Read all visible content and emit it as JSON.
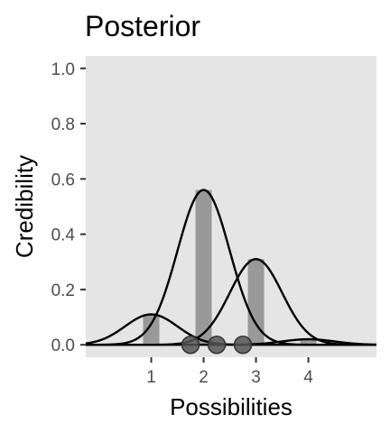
{
  "chart_data": {
    "type": "bar",
    "title": "Posterior",
    "xlabel": "Possibilities",
    "ylabel": "Credibility",
    "xlim": [
      -0.25,
      5.3
    ],
    "ylim": [
      -0.045,
      1.045
    ],
    "x_ticks": [
      1,
      2,
      3,
      4
    ],
    "x_tick_labels": [
      "1",
      "2",
      "3",
      "4"
    ],
    "y_ticks": [
      0.0,
      0.2,
      0.4,
      0.6,
      0.8,
      1.0
    ],
    "y_tick_labels": [
      "0.0",
      "0.2",
      "0.4",
      "0.6",
      "0.8",
      "1.0"
    ],
    "bars": {
      "categories": [
        1,
        2,
        3,
        4
      ],
      "values": [
        0.11,
        0.56,
        0.31,
        0.02
      ],
      "color": "#999999"
    },
    "data_points": {
      "x": [
        1.75,
        2.25,
        2.75
      ],
      "y": [
        0,
        0,
        0
      ],
      "color": "#555555"
    },
    "curves": [
      {
        "mean": 1,
        "sd": 0.5,
        "height": 0.11
      },
      {
        "mean": 2,
        "sd": 0.5,
        "height": 0.56
      },
      {
        "mean": 3,
        "sd": 0.5,
        "height": 0.31
      },
      {
        "mean": 4,
        "sd": 0.5,
        "height": 0.02
      }
    ],
    "grid": false,
    "panel_background": "#e5e5e5",
    "curve_color": "#000000"
  }
}
